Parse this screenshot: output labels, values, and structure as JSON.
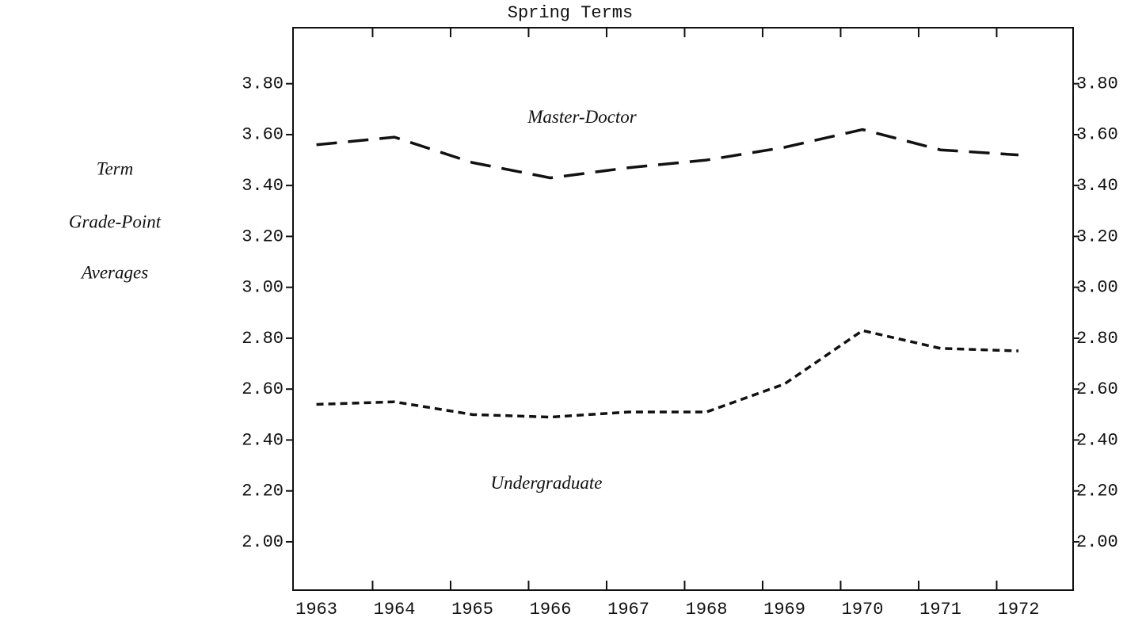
{
  "chart_data": {
    "type": "line",
    "title": "Spring Terms",
    "ylabel": [
      "Term",
      "Grade-Point",
      "Averages"
    ],
    "categories": [
      "1963",
      "1964",
      "1965",
      "1966",
      "1967",
      "1968",
      "1969",
      "1970",
      "1971",
      "1972"
    ],
    "series": [
      {
        "name": "Master-Doctor",
        "color": "#111111",
        "line_style": "dashed",
        "values": [
          3.56,
          3.59,
          3.49,
          3.43,
          3.47,
          3.5,
          3.55,
          3.62,
          3.54,
          3.52
        ]
      },
      {
        "name": "Undergraduate",
        "color": "#111111",
        "line_style": "dotted",
        "values": [
          2.54,
          2.55,
          2.5,
          2.49,
          2.51,
          2.51,
          2.62,
          2.83,
          2.76,
          2.75
        ]
      }
    ],
    "ylim": [
      1.81,
      4.02
    ],
    "yticks": [
      {
        "value": 2.0,
        "label": "2.00"
      },
      {
        "value": 2.2,
        "label": "2.20"
      },
      {
        "value": 2.4,
        "label": "2.40"
      },
      {
        "value": 2.6,
        "label": "2.60"
      },
      {
        "value": 2.8,
        "label": "2.80"
      },
      {
        "value": 3.0,
        "label": "3.00"
      },
      {
        "value": 3.2,
        "label": "3.20"
      },
      {
        "value": 3.4,
        "label": "3.40"
      },
      {
        "value": 3.6,
        "label": "3.60"
      },
      {
        "value": 3.8,
        "label": "3.80"
      }
    ],
    "right_axis": true
  }
}
